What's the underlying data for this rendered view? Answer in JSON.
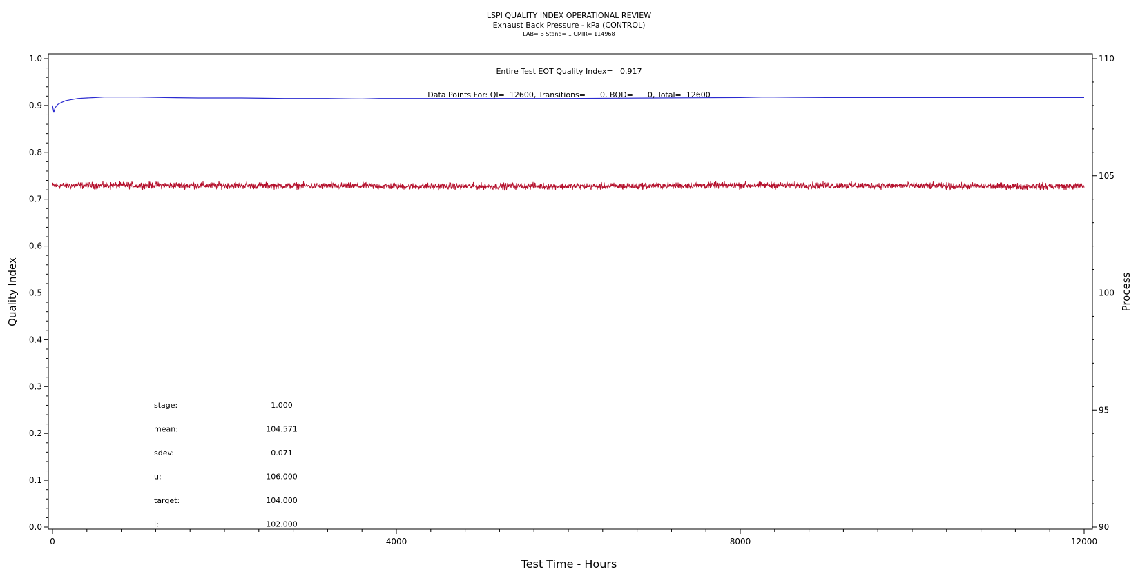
{
  "chart_data": {
    "type": "line",
    "title": "LSPI QUALITY INDEX OPERATIONAL REVIEW",
    "subtitle": "Exhaust Back Pressure - kPa (CONTROL)",
    "subtitle2": "LAB= B Stand= 1 CMIR= 114968",
    "xlabel": "Test Time - Hours",
    "ylabel": "Quality Index",
    "y2label": "Process",
    "xlim": [
      0,
      12000
    ],
    "ylim": [
      0,
      1
    ],
    "y2lim": [
      90,
      110
    ],
    "x_ticks": [
      0,
      4000,
      8000,
      12000
    ],
    "y_ticks": [
      0.0,
      0.1,
      0.2,
      0.3,
      0.4,
      0.5,
      0.6,
      0.7,
      0.8,
      0.9,
      1.0
    ],
    "y_tick_labels": [
      "0.0",
      "0.1",
      "0.2",
      "0.3",
      "0.4",
      "0.5",
      "0.6",
      "0.7",
      "0.8",
      "0.9",
      "1.0"
    ],
    "y2_ticks": [
      90,
      95,
      100,
      105,
      110
    ],
    "annotations": {
      "eot_qi": "Entire Test EOT Quality Index=   0.917",
      "data_points": "Data Points For: QI=  12600, Transitions=      0, BQD=      0, Total=  12600"
    },
    "stats": [
      {
        "label": "stage:",
        "value": "1.000"
      },
      {
        "label": "mean:",
        "value": "104.571"
      },
      {
        "label": "sdev:",
        "value": "0.071"
      },
      {
        "label": "u:",
        "value": "106.000"
      },
      {
        "label": "target:",
        "value": "104.000"
      },
      {
        "label": "l:",
        "value": "102.000"
      }
    ],
    "series": [
      {
        "axis": "left",
        "color": "#2b2bd0",
        "x": [
          0,
          15,
          30,
          60,
          100,
          150,
          200,
          300,
          400,
          500,
          600,
          800,
          1000,
          1300,
          1700,
          2200,
          2700,
          3200,
          3600,
          3800,
          4000,
          5000,
          6000,
          7000,
          8000,
          8300,
          9000,
          10000,
          11000,
          11200,
          12000
        ],
        "values": [
          0.9,
          0.885,
          0.895,
          0.902,
          0.906,
          0.91,
          0.912,
          0.915,
          0.916,
          0.917,
          0.918,
          0.918,
          0.918,
          0.917,
          0.916,
          0.916,
          0.915,
          0.915,
          0.914,
          0.915,
          0.915,
          0.915,
          0.915,
          0.916,
          0.917,
          0.918,
          0.917,
          0.917,
          0.917,
          0.917,
          0.917
        ]
      },
      {
        "axis": "right",
        "color": "#b5122e",
        "x": [
          0,
          12000
        ],
        "mean": 104.571,
        "sdev": 0.071
      }
    ],
    "colors": {
      "qi_line": "#2b2bd0",
      "process": "#b5122e",
      "axis": "#000000"
    }
  }
}
